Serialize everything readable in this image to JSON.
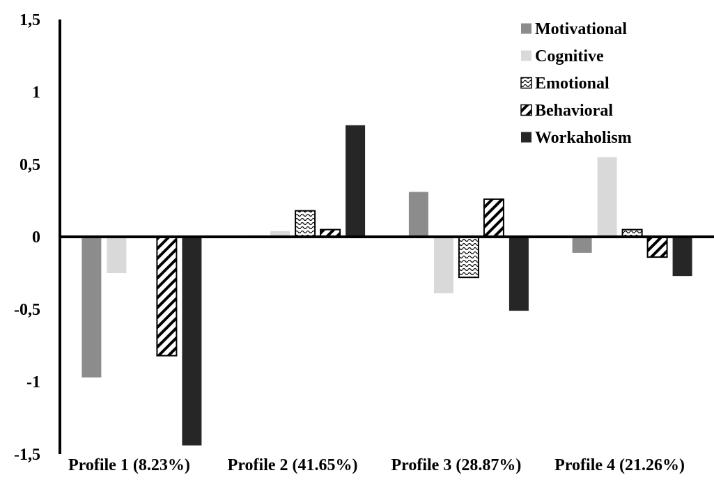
{
  "chart_data": {
    "type": "bar",
    "categories": [
      "Profile 1 (8.23%)",
      "Profile 2 (41.65%)",
      "Profile 3 (28.87%)",
      "Profile 4 (21.26%)"
    ],
    "y_tick_labels": [
      "1,5",
      "1",
      "0,5",
      "0",
      "-0,5",
      "-1",
      "-1,5"
    ],
    "y_ticks": [
      1.5,
      1,
      0.5,
      0,
      -0.5,
      -1,
      -1.5
    ],
    "ylim": [
      -1.5,
      1.5
    ],
    "grid": false,
    "legend_position": "top-right",
    "series": [
      {
        "name": "Motivational",
        "fill": "solid",
        "color": "#8c8c8c",
        "values": [
          -0.97,
          0.01,
          0.31,
          -0.11
        ]
      },
      {
        "name": "Cognitive",
        "fill": "solid",
        "color": "#d9d9d9",
        "values": [
          -0.25,
          0.04,
          -0.39,
          0.55
        ]
      },
      {
        "name": "Emotional",
        "fill": "wave",
        "color": "#000000",
        "values": [
          0.0,
          0.18,
          -0.28,
          0.05
        ]
      },
      {
        "name": "Behavioral",
        "fill": "diagonal",
        "color": "#000000",
        "values": [
          -0.82,
          0.05,
          0.26,
          -0.14
        ]
      },
      {
        "name": "Workaholism",
        "fill": "solid",
        "color": "#262626",
        "values": [
          -1.44,
          0.77,
          -0.51,
          -0.27
        ]
      }
    ]
  }
}
